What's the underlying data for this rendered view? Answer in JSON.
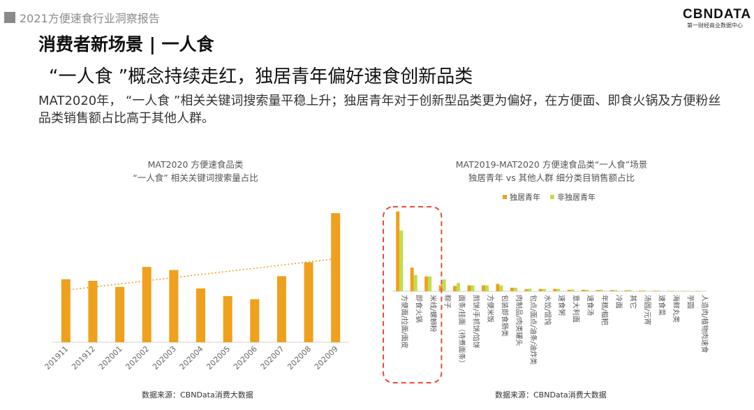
{
  "header": {
    "report_title": "2021方便速食行业洞察报告"
  },
  "logo": {
    "main": "CBNDATA",
    "sub": "第一财经商业数据中心"
  },
  "headline": {
    "section": "消费者新场景 | 一人食",
    "subtitle": "“一人食 ”概念持续走红，独居青年偏好速食创新品类",
    "description": "MAT2020年，  “一人食 ”相关关键词搜索量平稳上升；独居青年对于创新型品类更为偏好，在方便面、即食火锅及方便粉丝品类销售额占比高于其他人群。"
  },
  "colors": {
    "orange": "#EFA01C",
    "green": "#BCE04A",
    "highlight": "#E84A3C",
    "trend": "#EFA01C"
  },
  "chart_data": [
    {
      "type": "bar",
      "title_line1": "MAT2020 方便速食品类",
      "title_line2": "“一人食” 相关关键词搜索量占比",
      "categories": [
        "201911",
        "201912",
        "202001",
        "202002",
        "202003",
        "202004",
        "202005",
        "202006",
        "202007",
        "202008",
        "202009"
      ],
      "values": [
        41,
        40,
        36,
        49,
        47,
        35,
        30,
        28,
        43,
        52,
        84
      ],
      "ylim": [
        0,
        100
      ],
      "trendline": "linear",
      "source": "数据来源：CBNData消费大数据"
    },
    {
      "type": "bar",
      "title_line1": "MAT2019-MAT2020 方便速食品类“一人食”场景",
      "title_line2": "独居青年 vs 其他人群 细分类目销售额占比",
      "legend": [
        "独居青年",
        "非独居青年"
      ],
      "categories": [
        "方便面/拉面/面皮",
        "即食火锅",
        "米线/螺蛳粉",
        "粽子",
        "面条/挂面（待煮面条）",
        "煎饼/手抓饼/馅饼",
        "方便米饭",
        "包装即食肠类",
        "肉制品/肉类罐头",
        "包点/面点/油条/油炸类",
        "水饺/馄饨",
        "速食粥",
        "意大利面",
        "速食汤",
        "年糕/糍粑",
        "冷面",
        "其它",
        "汤圆/元宵",
        "速食菜",
        "海鲜丸类",
        "芋圆",
        "人造肉/植物肉速食"
      ],
      "series": [
        {
          "name": "独居青年",
          "values": [
            27.0,
            8.0,
            5.0,
            2.0,
            1.8,
            2.0,
            2.0,
            2.5,
            1.2,
            0.7,
            0.8,
            0.8,
            0.5,
            0.5,
            0.4,
            0.4,
            0.3,
            0.2,
            0.2,
            0.1,
            0.1,
            0.1
          ]
        },
        {
          "name": "非独居青年",
          "values": [
            20.5,
            5.5,
            5.0,
            4.0,
            2.8,
            2.0,
            2.0,
            2.0,
            1.2,
            0.9,
            0.8,
            0.8,
            0.6,
            0.5,
            0.5,
            0.4,
            0.4,
            0.3,
            0.2,
            0.2,
            0.1,
            0.1
          ]
        }
      ],
      "ylim": [
        0,
        30
      ],
      "highlighted_categories": [
        "方便面/拉面/面皮",
        "即食火锅",
        "米线/螺蛳粉"
      ],
      "source": "数据来源：CBNData消费大数据"
    }
  ]
}
